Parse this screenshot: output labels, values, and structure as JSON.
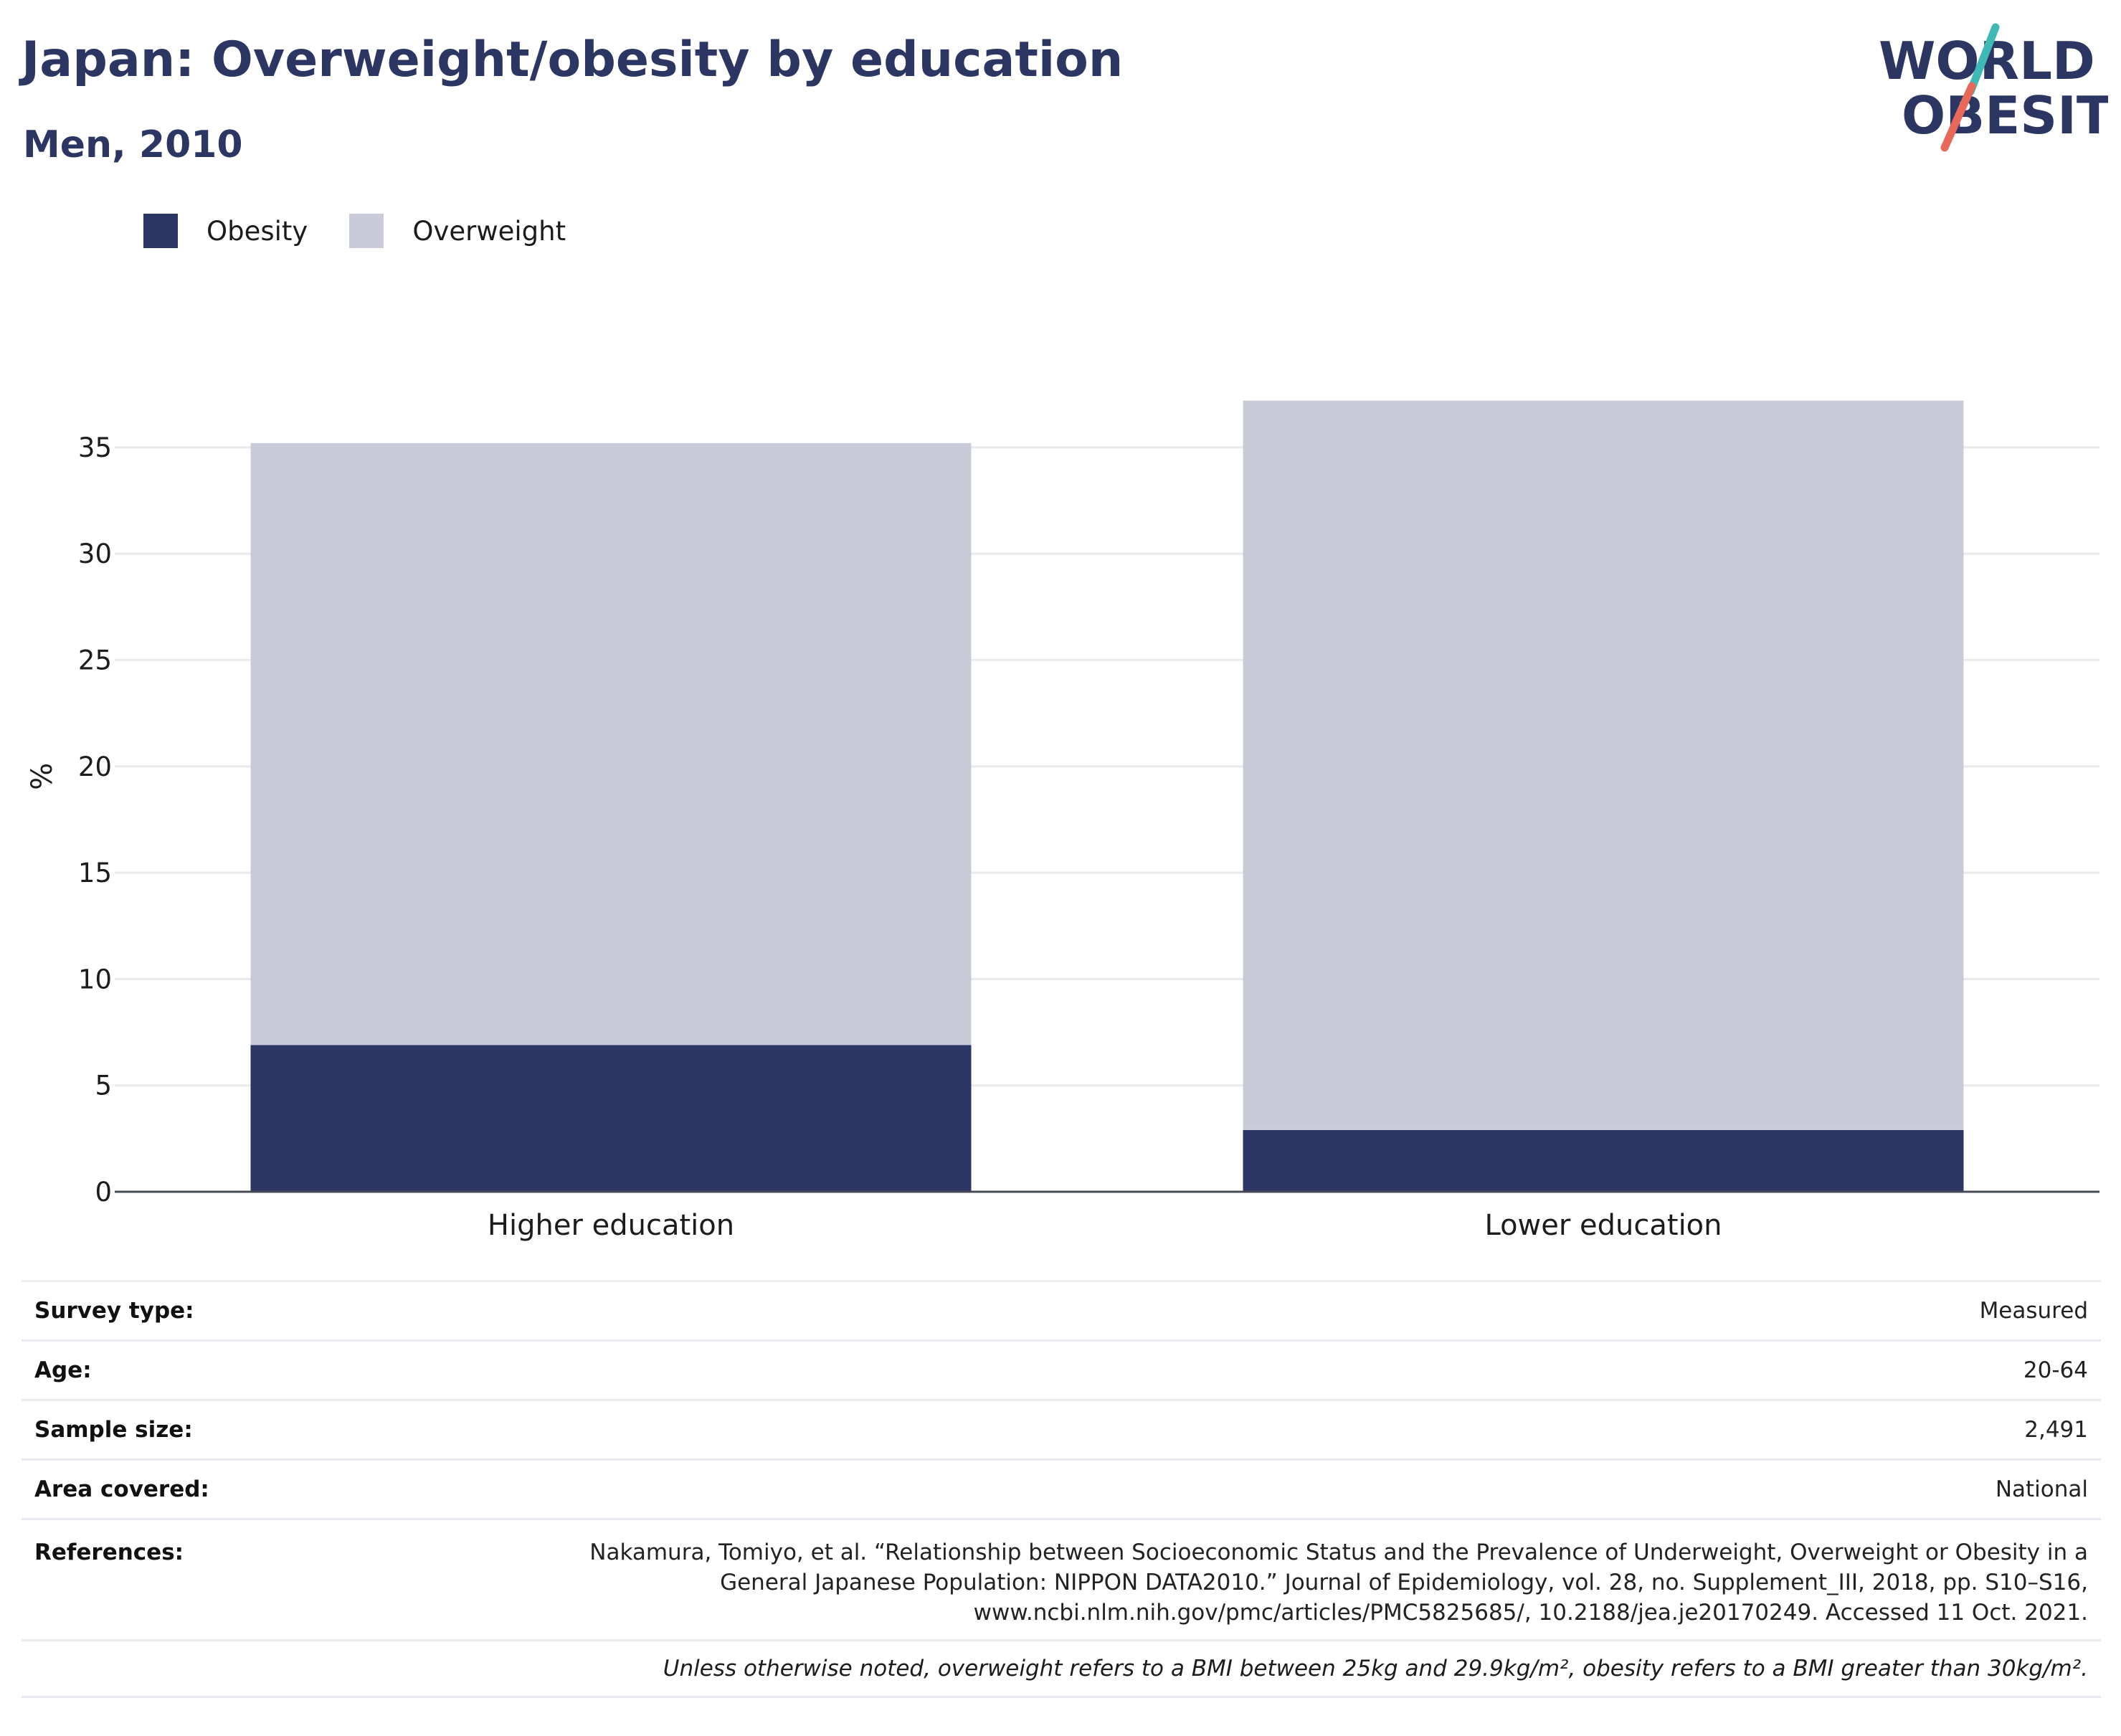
{
  "header": {
    "title": "Japan: Overweight/obesity by education",
    "subtitle": "Men, 2010"
  },
  "logo": {
    "line1": "WORLD",
    "line2": "OBESITY",
    "colors": {
      "text": "#2c3663",
      "slash_top": "#3fb9b5",
      "slash_bottom": "#e8695a"
    }
  },
  "legend": [
    {
      "label": "Obesity",
      "color": "#2b3664"
    },
    {
      "label": "Overweight",
      "color": "#c9ccd8"
    }
  ],
  "chart_data": {
    "type": "bar",
    "stacked": true,
    "categories": [
      "Higher education",
      "Lower education"
    ],
    "series": [
      {
        "name": "Obesity",
        "values": [
          6.9,
          2.9
        ],
        "color": "#2b3664"
      },
      {
        "name": "Overweight",
        "values": [
          28.3,
          34.3
        ],
        "color": "#c9ccd8"
      }
    ],
    "ylabel": "%",
    "ylim": [
      0,
      40
    ],
    "yticks": [
      0,
      5,
      10,
      15,
      20,
      25,
      30,
      35
    ],
    "grid": true,
    "legend_position": "top-left"
  },
  "info": {
    "survey_type": {
      "label": "Survey type:",
      "value": "Measured"
    },
    "age": {
      "label": "Age:",
      "value": "20-64"
    },
    "sample_size": {
      "label": "Sample size:",
      "value": "2,491"
    },
    "area": {
      "label": "Area covered:",
      "value": "National"
    },
    "references": {
      "label": "References:",
      "lines": [
        "Nakamura, Tomiyo, et al. “Relationship between Socioeconomic Status and the Prevalence of Underweight, Overweight or Obesity in a",
        "General Japanese Population: NIPPON DATA2010.” Journal of Epidemiology, vol. 28, no. Supplement_III, 2018, pp. S10–S16,",
        "www.ncbi.nlm.nih.gov/pmc/articles/PMC5825685/, 10.2188/jea.je20170249. Accessed 11 Oct. 2021."
      ]
    },
    "note": "Unless otherwise noted, overweight refers to a BMI between 25kg and 29.9kg/m², obesity refers to a BMI greater than 30kg/m²."
  }
}
